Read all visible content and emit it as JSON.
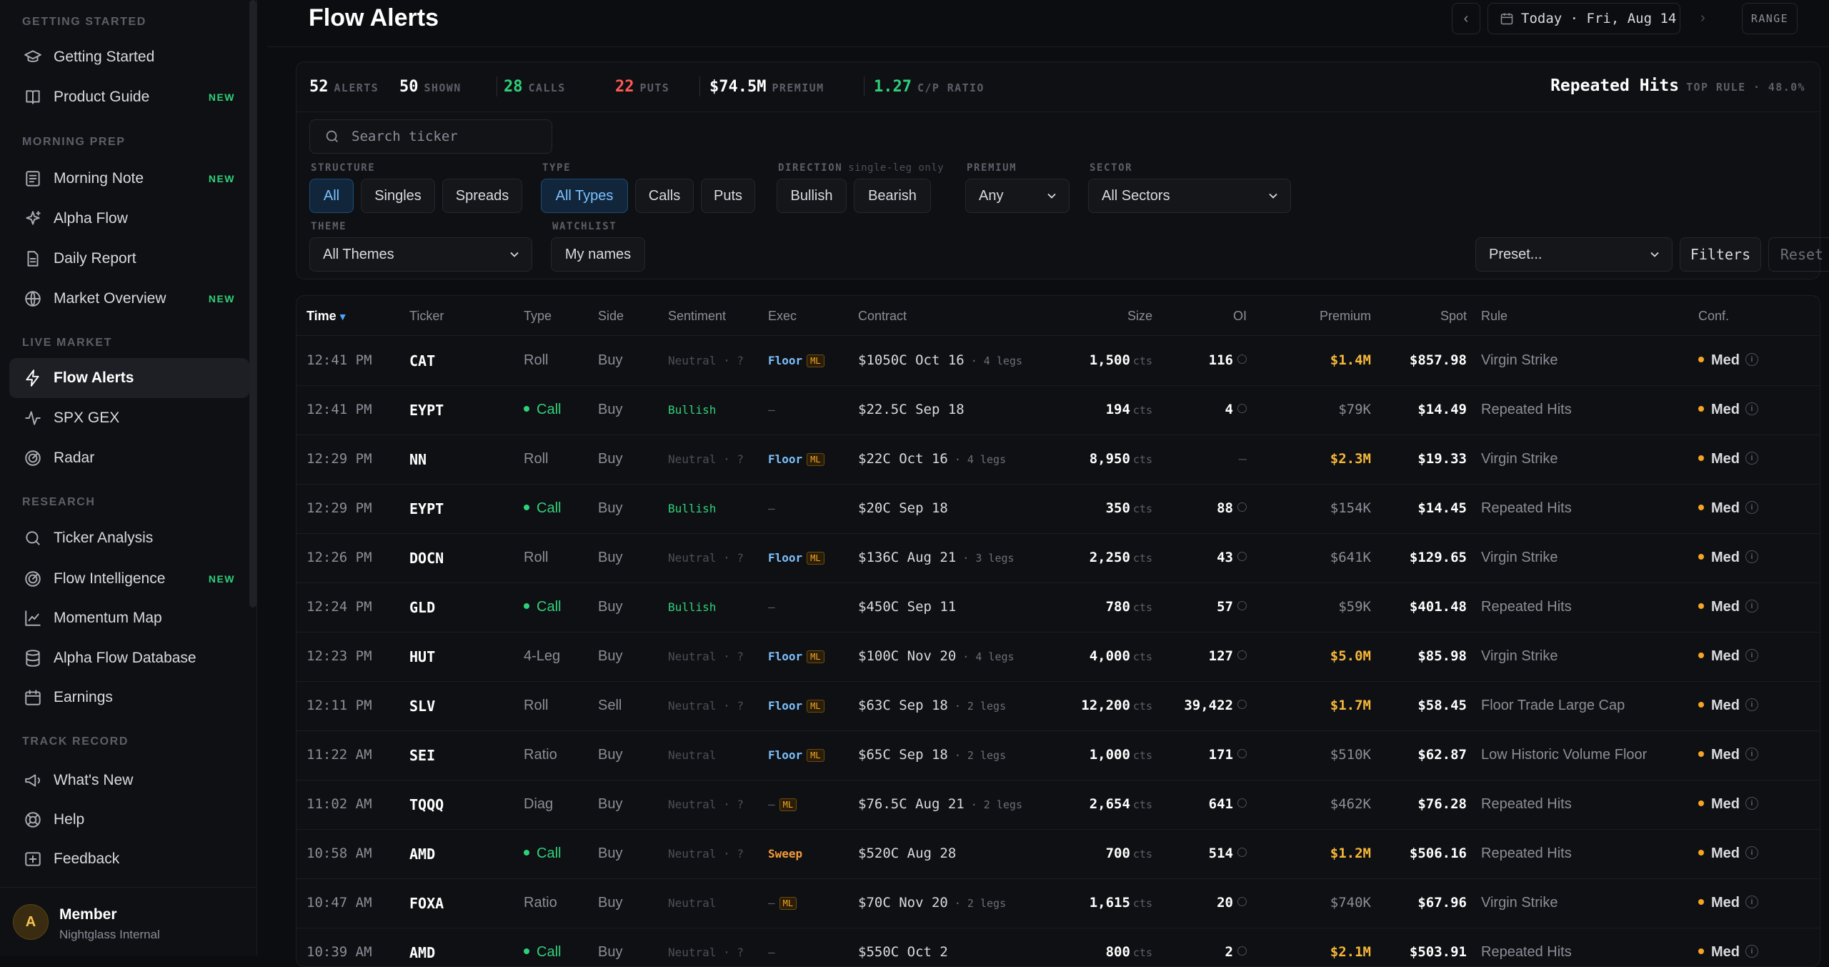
{
  "sidebar": {
    "sections": [
      {
        "label": "GETTING STARTED",
        "items": [
          {
            "label": "Getting Started",
            "icon": "graduation-cap-icon",
            "new": ""
          },
          {
            "label": "Product Guide",
            "icon": "book-icon",
            "new": "NEW"
          }
        ]
      },
      {
        "label": "MORNING PREP",
        "items": [
          {
            "label": "Morning Note",
            "icon": "newspaper-icon",
            "new": "NEW"
          },
          {
            "label": "Alpha Flow",
            "icon": "sparkles-icon",
            "new": ""
          },
          {
            "label": "Daily Report",
            "icon": "file-text-icon",
            "new": ""
          },
          {
            "label": "Market Overview",
            "icon": "globe-icon",
            "new": "NEW"
          }
        ]
      },
      {
        "label": "LIVE MARKET",
        "items": [
          {
            "label": "Flow Alerts",
            "icon": "zap-icon",
            "new": "",
            "active": true
          },
          {
            "label": "SPX GEX",
            "icon": "activity-icon",
            "new": ""
          },
          {
            "label": "Radar",
            "icon": "radar-icon",
            "new": ""
          }
        ]
      },
      {
        "label": "RESEARCH",
        "items": [
          {
            "label": "Ticker Analysis",
            "icon": "search-icon",
            "new": ""
          },
          {
            "label": "Flow Intelligence",
            "icon": "radar-icon",
            "new": "NEW"
          },
          {
            "label": "Momentum Map",
            "icon": "line-chart-icon",
            "new": ""
          },
          {
            "label": "Alpha Flow Database",
            "icon": "database-icon",
            "new": ""
          },
          {
            "label": "Earnings",
            "icon": "calendar-icon",
            "new": ""
          }
        ]
      },
      {
        "label": "TRACK RECORD",
        "items": [
          {
            "label": "What's New",
            "icon": "megaphone-icon",
            "new": ""
          },
          {
            "label": "Help",
            "icon": "lifebuoy-icon",
            "new": ""
          },
          {
            "label": "Feedback",
            "icon": "message-plus-icon",
            "new": ""
          }
        ]
      }
    ],
    "user": {
      "initial": "A",
      "name": "Member",
      "org": "Nightglass Internal"
    }
  },
  "header": {
    "title": "Flow Alerts",
    "prev": "‹",
    "date": "Today · Fri, Aug 14",
    "next": "›",
    "range": "RANGE"
  },
  "stats": {
    "alerts": {
      "n": "52",
      "l": "ALERTS"
    },
    "shown": {
      "n": "50",
      "l": "SHOWN"
    },
    "calls": {
      "n": "28",
      "l": "CALLS"
    },
    "puts": {
      "n": "22",
      "l": "PUTS"
    },
    "premium": {
      "n": "$74.5M",
      "l": "PREMIUM"
    },
    "cp": {
      "n": "1.27",
      "l": "C/P RATIO"
    },
    "top_rule": {
      "v": "Repeated Hits",
      "l": "TOP RULE · 48.0%"
    }
  },
  "filters": {
    "search_placeholder": "Search ticker",
    "structure": {
      "label": "STRUCTURE",
      "options": [
        "All",
        "Singles",
        "Spreads"
      ]
    },
    "type": {
      "label": "TYPE",
      "options": [
        "All Types",
        "Calls",
        "Puts"
      ]
    },
    "direction": {
      "label": "DIRECTION",
      "sub": "single-leg only",
      "options": [
        "Bullish",
        "Bearish"
      ]
    },
    "premium": {
      "label": "PREMIUM",
      "value": "Any"
    },
    "sector": {
      "label": "SECTOR",
      "value": "All Sectors"
    },
    "theme": {
      "label": "THEME",
      "value": "All Themes"
    },
    "watchlist": {
      "label": "WATCHLIST",
      "value": "My names"
    },
    "preset": "Preset...",
    "filters_btn": "Filters",
    "reset_btn": "Reset"
  },
  "table": {
    "columns": [
      "Time",
      "Ticker",
      "Type",
      "Side",
      "Sentiment",
      "Exec",
      "Contract",
      "Size",
      "OI",
      "Premium",
      "Spot",
      "Rule",
      "Conf."
    ],
    "sort_arrow": "▼",
    "rows": [
      {
        "time": "12:41 PM",
        "ticker": "CAT",
        "type": "Roll",
        "call": false,
        "side": "Buy",
        "sent": "Neutral · ?",
        "bull": false,
        "exec": "Floor",
        "ml": true,
        "contract": "$1050C Oct 16",
        "legs": " · 4 legs",
        "size": "1,500",
        "oi": "116",
        "prem": "$1.4M",
        "big": true,
        "spot": "$857.98",
        "rule": "Virgin Strike",
        "conf": "Med"
      },
      {
        "time": "12:41 PM",
        "ticker": "EYPT",
        "type": "Call",
        "call": true,
        "side": "Buy",
        "sent": "Bullish",
        "bull": true,
        "exec": "—",
        "ml": false,
        "contract": "$22.5C Sep 18",
        "legs": "",
        "size": "194",
        "oi": "4",
        "prem": "$79K",
        "big": false,
        "spot": "$14.49",
        "rule": "Repeated Hits",
        "conf": "Med"
      },
      {
        "time": "12:29 PM",
        "ticker": "NN",
        "type": "Roll",
        "call": false,
        "side": "Buy",
        "sent": "Neutral · ?",
        "bull": false,
        "exec": "Floor",
        "ml": true,
        "contract": "$22C Oct 16",
        "legs": " · 4 legs",
        "size": "8,950",
        "oi": "—",
        "prem": "$2.3M",
        "big": true,
        "spot": "$19.33",
        "rule": "Virgin Strike",
        "conf": "Med"
      },
      {
        "time": "12:29 PM",
        "ticker": "EYPT",
        "type": "Call",
        "call": true,
        "side": "Buy",
        "sent": "Bullish",
        "bull": true,
        "exec": "—",
        "ml": false,
        "contract": "$20C Sep 18",
        "legs": "",
        "size": "350",
        "oi": "88",
        "prem": "$154K",
        "big": false,
        "spot": "$14.45",
        "rule": "Repeated Hits",
        "conf": "Med"
      },
      {
        "time": "12:26 PM",
        "ticker": "DOCN",
        "type": "Roll",
        "call": false,
        "side": "Buy",
        "sent": "Neutral · ?",
        "bull": false,
        "exec": "Floor",
        "ml": true,
        "contract": "$136C Aug 21",
        "legs": " · 3 legs",
        "size": "2,250",
        "oi": "43",
        "prem": "$641K",
        "big": false,
        "spot": "$129.65",
        "rule": "Virgin Strike",
        "conf": "Med"
      },
      {
        "time": "12:24 PM",
        "ticker": "GLD",
        "type": "Call",
        "call": true,
        "side": "Buy",
        "sent": "Bullish",
        "bull": true,
        "exec": "—",
        "ml": false,
        "contract": "$450C Sep 11",
        "legs": "",
        "size": "780",
        "oi": "57",
        "prem": "$59K",
        "big": false,
        "spot": "$401.48",
        "rule": "Repeated Hits",
        "conf": "Med"
      },
      {
        "time": "12:23 PM",
        "ticker": "HUT",
        "type": "4-Leg",
        "call": false,
        "side": "Buy",
        "sent": "Neutral · ?",
        "bull": false,
        "exec": "Floor",
        "ml": true,
        "contract": "$100C Nov 20",
        "legs": " · 4 legs",
        "size": "4,000",
        "oi": "127",
        "prem": "$5.0M",
        "big": true,
        "spot": "$85.98",
        "rule": "Virgin Strike",
        "conf": "Med"
      },
      {
        "time": "12:11 PM",
        "ticker": "SLV",
        "type": "Roll",
        "call": false,
        "side": "Sell",
        "sent": "Neutral · ?",
        "bull": false,
        "exec": "Floor",
        "ml": true,
        "contract": "$63C Sep 18",
        "legs": " · 2 legs",
        "size": "12,200",
        "oi": "39,422",
        "prem": "$1.7M",
        "big": true,
        "spot": "$58.45",
        "rule": "Floor Trade Large Cap",
        "conf": "Med"
      },
      {
        "time": "11:22 AM",
        "ticker": "SEI",
        "type": "Ratio",
        "call": false,
        "side": "Buy",
        "sent": "Neutral",
        "bull": false,
        "exec": "Floor",
        "ml": true,
        "contract": "$65C Sep 18",
        "legs": " · 2 legs",
        "size": "1,000",
        "oi": "171",
        "prem": "$510K",
        "big": false,
        "spot": "$62.87",
        "rule": "Low Historic Volume Floor",
        "conf": "Med"
      },
      {
        "time": "11:02 AM",
        "ticker": "TQQQ",
        "type": "Diag",
        "call": false,
        "side": "Buy",
        "sent": "Neutral · ?",
        "bull": false,
        "exec": "—",
        "ml": true,
        "contract": "$76.5C Aug 21",
        "legs": " · 2 legs",
        "size": "2,654",
        "oi": "641",
        "prem": "$462K",
        "big": false,
        "spot": "$76.28",
        "rule": "Repeated Hits",
        "conf": "Med"
      },
      {
        "time": "10:58 AM",
        "ticker": "AMD",
        "type": "Call",
        "call": true,
        "side": "Buy",
        "sent": "Neutral · ?",
        "bull": false,
        "exec": "Sweep",
        "ml": false,
        "contract": "$520C Aug 28",
        "legs": "",
        "size": "700",
        "oi": "514",
        "prem": "$1.2M",
        "big": true,
        "spot": "$506.16",
        "rule": "Repeated Hits",
        "conf": "Med"
      },
      {
        "time": "10:47 AM",
        "ticker": "FOXA",
        "type": "Ratio",
        "call": false,
        "side": "Buy",
        "sent": "Neutral",
        "bull": false,
        "exec": "—",
        "ml": true,
        "contract": "$70C Nov 20",
        "legs": " · 2 legs",
        "size": "1,615",
        "oi": "20",
        "prem": "$740K",
        "big": false,
        "spot": "$67.96",
        "rule": "Virgin Strike",
        "conf": "Med"
      },
      {
        "time": "10:39 AM",
        "ticker": "AMD",
        "type": "Call",
        "call": true,
        "side": "Buy",
        "sent": "Neutral · ?",
        "bull": false,
        "exec": "—",
        "ml": false,
        "contract": "$550C Oct 2",
        "legs": "",
        "size": "800",
        "oi": "2",
        "prem": "$2.1M",
        "big": true,
        "spot": "$503.91",
        "rule": "Repeated Hits",
        "conf": "Med"
      }
    ],
    "size_unit": "cts"
  },
  "colors": {
    "accent": "#4ea6ff",
    "green": "#2fd07a",
    "red": "#ff5a52",
    "gold": "#f5b63a"
  }
}
